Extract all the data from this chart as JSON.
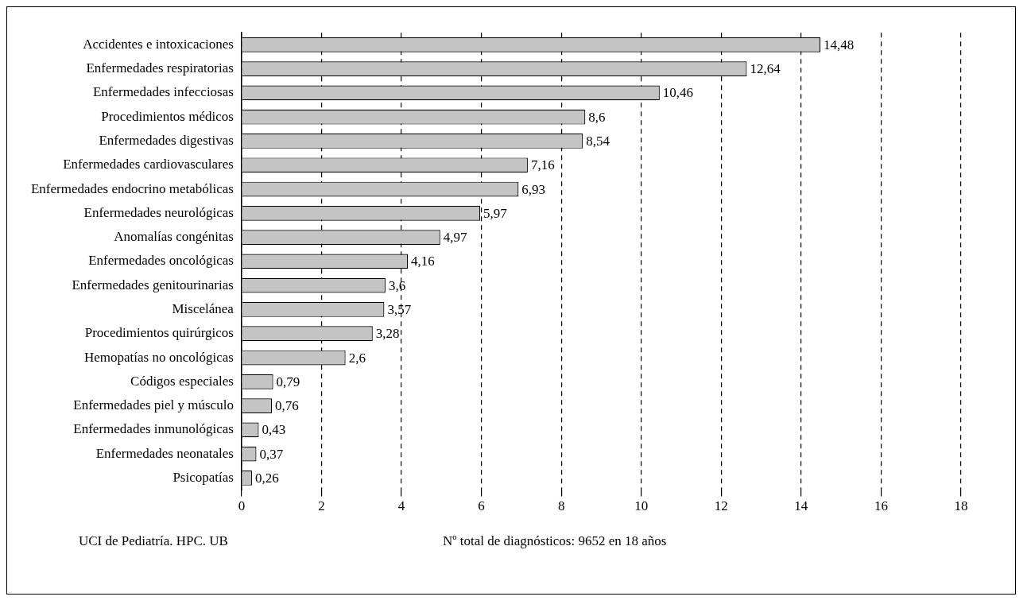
{
  "chart_data": {
    "type": "bar",
    "orientation": "horizontal",
    "categories": [
      "Accidentes e intoxicaciones",
      "Enfermedades respiratorias",
      "Enfermedades infecciosas",
      "Procedimientos médicos",
      "Enfermedades digestivas",
      "Enfermedades cardiovasculares",
      "Enfermedades endocrino metabólicas",
      "Enfermedades neurológicas",
      "Anomalías congénitas",
      "Enfermedades oncológicas",
      "Enfermedades genitourinarias",
      "Miscelánea",
      "Procedimientos quirúrgicos",
      "Hemopatías no oncológicas",
      "Códigos especiales",
      "Enfermedades piel y músculo",
      "Enfermedades inmunológicas",
      "Enfermedades neonatales",
      "Psicopatías"
    ],
    "values": [
      14.48,
      12.64,
      10.46,
      8.6,
      8.54,
      7.16,
      6.93,
      5.97,
      4.97,
      4.16,
      3.6,
      3.57,
      3.28,
      2.6,
      0.79,
      0.76,
      0.43,
      0.37,
      0.26
    ],
    "value_labels": [
      "14,48",
      "12,64",
      "10,46",
      "8,6",
      "8,54",
      "7,16",
      "6,93",
      "5,97",
      "4,97",
      "4,16",
      "3,6",
      "3,57",
      "3,28",
      "2,6",
      "0,79",
      "0,76",
      "0,43",
      "0,37",
      "0,26"
    ],
    "color": "#c4c4c4",
    "xlim": [
      0,
      18
    ],
    "xticks": [
      0,
      2,
      4,
      6,
      8,
      10,
      12,
      14,
      16,
      18
    ],
    "grid": "x",
    "legend": false,
    "annotations": [
      "UCI de Pediatría. HPC. UB",
      "Nº total de diagnósticos: 9652 en 18 años"
    ]
  }
}
